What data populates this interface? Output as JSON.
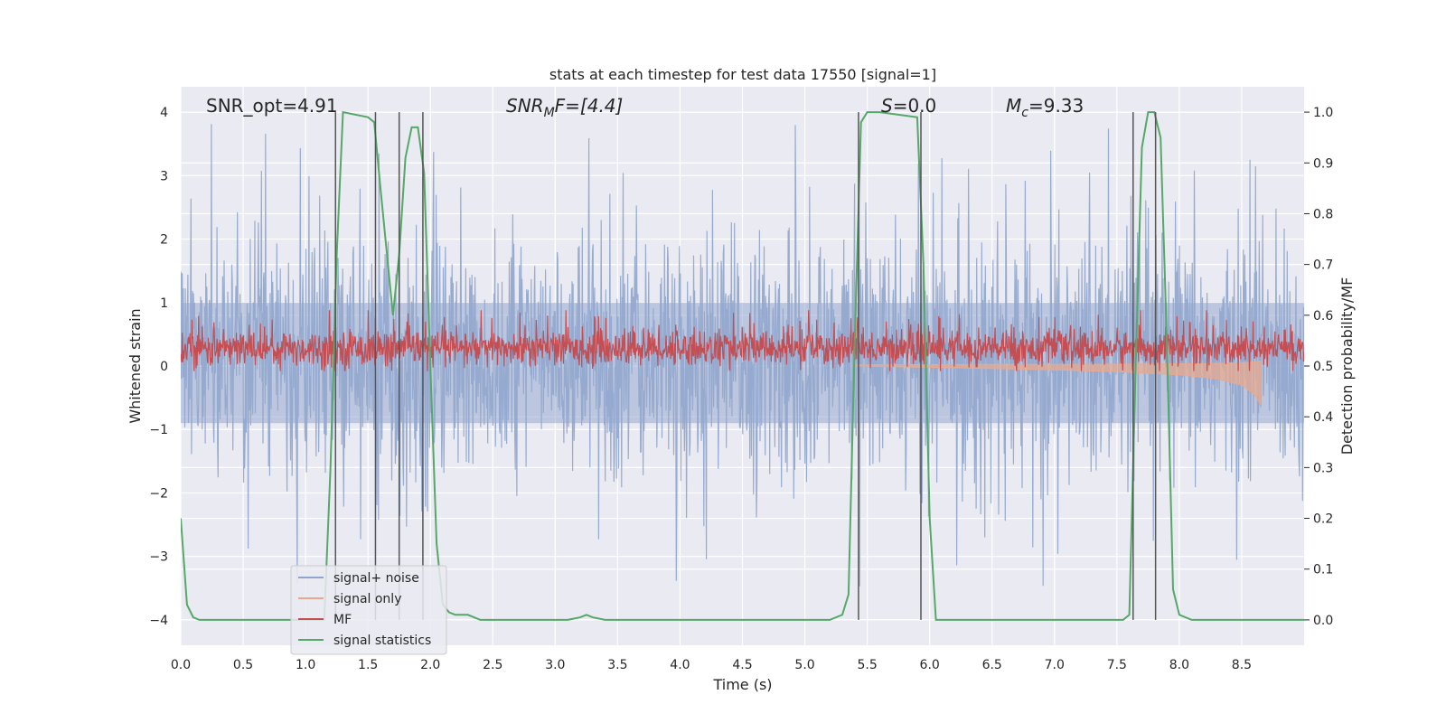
{
  "chart_data": {
    "type": "line",
    "title": "stats at each timestep for test data 17550 [signal=1]",
    "xlabel": "Time (s)",
    "ylabel": "Whitened strain",
    "ylabel_right": "Detection probability/MF",
    "xlim": [
      0.0,
      9.0
    ],
    "ylim": [
      -4.4,
      4.4
    ],
    "ylim_right": [
      -0.05,
      1.05
    ],
    "x_ticks": [
      "0.0",
      "0.5",
      "1.0",
      "1.5",
      "2.0",
      "2.5",
      "3.0",
      "3.5",
      "4.0",
      "4.5",
      "5.0",
      "5.5",
      "6.0",
      "6.5",
      "7.0",
      "7.5",
      "8.0",
      "8.5"
    ],
    "y_ticks": [
      "4",
      "3",
      "2",
      "1",
      "0",
      "−1",
      "−2",
      "−3",
      "−4"
    ],
    "y_ticks_right": [
      "1.0",
      "0.9",
      "0.8",
      "0.7",
      "0.6",
      "0.5",
      "0.4",
      "0.3",
      "0.2",
      "0.1",
      "0.0"
    ],
    "grid": true,
    "legend_position": "lower-left",
    "annotations": {
      "snr_opt": "SNR_opt=4.91",
      "snr_mf_main": "SNR",
      "snr_mf_sub": "M",
      "snr_mf_rest": "F=[4.4]",
      "s_main": "S",
      "s_rest": "=0.0",
      "mc_main": "M",
      "mc_sub": "c",
      "mc_rest": "=9.33"
    },
    "vertical_lines": [
      1.24,
      1.56,
      1.75,
      1.94,
      5.43,
      5.93,
      7.63,
      7.81
    ],
    "series": [
      {
        "name": "signal+ noise",
        "color": "#8fa5cc",
        "description": "whitened noise, approx amplitude range -2.6 to 3.5 with spikes to 4"
      },
      {
        "name": "signal only",
        "color": "#e8a98f",
        "x": [
          5.4,
          6.0,
          6.5,
          7.0,
          7.5,
          8.0,
          8.3,
          8.5,
          8.6,
          8.65
        ],
        "y_low": [
          0.0,
          -0.02,
          -0.04,
          -0.06,
          -0.09,
          -0.14,
          -0.2,
          -0.3,
          -0.45,
          -0.6
        ]
      },
      {
        "name": "MF",
        "color": "#c44e52",
        "description": "matched-filter output, right axis, approx 0.5 to 0.6"
      },
      {
        "name": "signal statistics",
        "color": "#55a868",
        "x": [
          0.0,
          0.05,
          0.1,
          0.15,
          0.2,
          1.15,
          1.2,
          1.25,
          1.3,
          1.5,
          1.55,
          1.6,
          1.7,
          1.75,
          1.8,
          1.85,
          1.9,
          1.95,
          2.0,
          2.05,
          2.1,
          2.15,
          2.2,
          2.3,
          2.4,
          2.5,
          3.1,
          3.2,
          3.25,
          3.3,
          3.4,
          5.2,
          5.3,
          5.35,
          5.4,
          5.45,
          5.5,
          5.6,
          5.9,
          5.95,
          6.0,
          6.05,
          6.1,
          7.55,
          7.6,
          7.65,
          7.7,
          7.75,
          7.8,
          7.85,
          7.9,
          7.95,
          8.0,
          8.1,
          9.0
        ],
        "y": [
          0.2,
          0.03,
          0.005,
          0.0,
          0.0,
          0.0,
          0.3,
          0.72,
          1.0,
          0.99,
          0.98,
          0.85,
          0.6,
          0.72,
          0.91,
          0.97,
          0.97,
          0.88,
          0.5,
          0.15,
          0.03,
          0.015,
          0.01,
          0.01,
          0.0,
          0.0,
          0.0,
          0.005,
          0.01,
          0.005,
          0.0,
          0.0,
          0.01,
          0.05,
          0.55,
          0.98,
          1.0,
          1.0,
          0.99,
          0.7,
          0.2,
          0.0,
          0.0,
          0.0,
          0.01,
          0.5,
          0.93,
          1.0,
          1.0,
          0.95,
          0.55,
          0.06,
          0.01,
          0.0,
          0.0
        ]
      }
    ]
  }
}
